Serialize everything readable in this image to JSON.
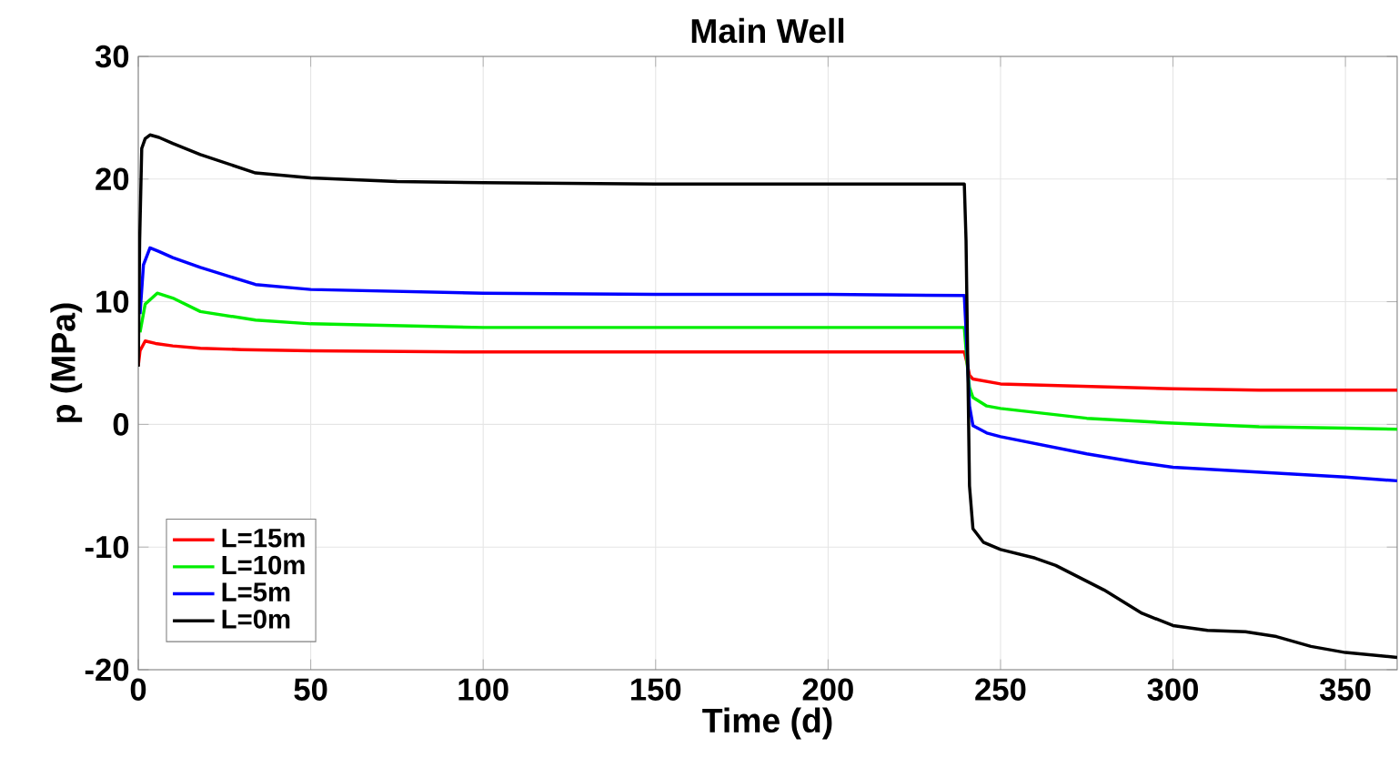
{
  "chart_data": {
    "type": "line",
    "title": "Main Well",
    "xlabel": "Time (d)",
    "ylabel": "p (MPa)",
    "xlim": [
      0,
      365
    ],
    "ylim": [
      -20,
      30
    ],
    "xticks": [
      0,
      50,
      100,
      150,
      200,
      250,
      300,
      350
    ],
    "yticks": [
      -20,
      -10,
      0,
      10,
      20,
      30
    ],
    "grid": true,
    "legend": "bottom left",
    "line_style": "solid",
    "marker": "none",
    "series": [
      {
        "name": "L=15m",
        "color": "#ff0000",
        "x": [
          0,
          0.5,
          2,
          5,
          10,
          18,
          30,
          50,
          100,
          150,
          200,
          239.5,
          240.3,
          241,
          242,
          250,
          275,
          300,
          325,
          350,
          365
        ],
        "values": [
          4.8,
          6.0,
          6.8,
          6.6,
          6.4,
          6.2,
          6.1,
          6.0,
          5.9,
          5.9,
          5.9,
          5.9,
          5.0,
          4.0,
          3.7,
          3.3,
          3.1,
          2.9,
          2.8,
          2.8,
          2.8
        ]
      },
      {
        "name": "L=10m",
        "color": "#00ee00",
        "x": [
          0.5,
          2,
          5.5,
          10,
          18,
          34,
          50,
          100,
          150,
          200,
          239.5,
          240.3,
          241,
          242,
          246,
          250,
          275,
          300,
          325,
          350,
          365
        ],
        "values": [
          7.5,
          9.8,
          10.7,
          10.3,
          9.2,
          8.5,
          8.2,
          7.9,
          7.9,
          7.9,
          7.9,
          5.0,
          3.0,
          2.2,
          1.5,
          1.3,
          0.5,
          0.1,
          -0.2,
          -0.3,
          -0.4
        ]
      },
      {
        "name": "L=5m",
        "color": "#0000ff",
        "x": [
          0.5,
          1.5,
          3.4,
          6,
          10,
          18,
          34,
          50,
          100,
          150,
          200,
          239.5,
          240.3,
          241,
          242,
          246,
          250,
          275,
          290,
          300,
          350,
          365
        ],
        "values": [
          9,
          13,
          14.4,
          14.1,
          13.6,
          12.8,
          11.4,
          11.0,
          10.7,
          10.6,
          10.6,
          10.5,
          6,
          1.5,
          -0.1,
          -0.7,
          -1.0,
          -2.4,
          -3.1,
          -3.5,
          -4.3,
          -4.6
        ]
      },
      {
        "name": "L=0m",
        "color": "#000000",
        "x": [
          0,
          0.4,
          1,
          2,
          3.4,
          6,
          10,
          18,
          34,
          50,
          75,
          100,
          150,
          200,
          239.5,
          240,
          240.5,
          241,
          242,
          245,
          250,
          260,
          266,
          280,
          291,
          300,
          310,
          321,
          330,
          340,
          350,
          365
        ],
        "values": [
          4.7,
          15,
          22.5,
          23.3,
          23.6,
          23.4,
          22.9,
          22.0,
          20.5,
          20.1,
          19.8,
          19.7,
          19.6,
          19.6,
          19.6,
          15,
          5,
          -5,
          -8.5,
          -9.6,
          -10.2,
          -10.9,
          -11.5,
          -13.5,
          -15.4,
          -16.4,
          -16.8,
          -16.9,
          -17.3,
          -18.1,
          -18.6,
          -19.0
        ]
      }
    ]
  }
}
